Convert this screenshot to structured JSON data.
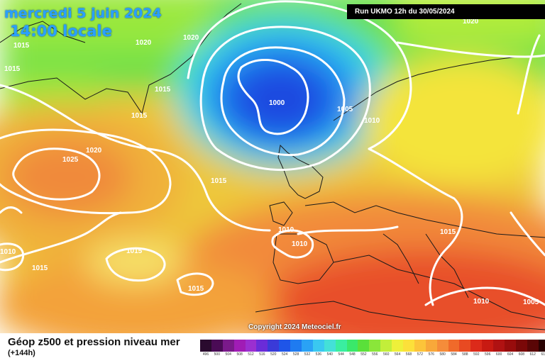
{
  "header": {
    "date": "mercredi 5 juin 2024",
    "time": "14:00 locale",
    "run": "Run UKMO 12h du 30/05/2024"
  },
  "footer": {
    "title": "Géop z500 et pression niveau mer",
    "subtitle": "(+144h)",
    "copyright": "Copyright 2024 Meteociel.fr"
  },
  "isobars": {
    "labels": [
      "1015",
      "1015",
      "1020",
      "1020",
      "1015",
      "1015",
      "1020",
      "1025",
      "1015",
      "1000",
      "1005",
      "1010",
      "1015",
      "1010",
      "1010",
      "1010",
      "1015",
      "1015",
      "1015",
      "1010",
      "1005",
      "1020"
    ]
  },
  "scale": {
    "values": [
      "496",
      "500",
      "504",
      "508",
      "512",
      "516",
      "520",
      "524",
      "528",
      "532",
      "536",
      "540",
      "544",
      "548",
      "552",
      "556",
      "560",
      "564",
      "568",
      "572",
      "576",
      "580",
      "584",
      "588",
      "592",
      "596",
      "600",
      "604",
      "608",
      "612",
      "616"
    ],
    "colors": [
      "#2a0a2e",
      "#4a0b55",
      "#7a1a8a",
      "#a01cb5",
      "#9b2fd0",
      "#6a2cd8",
      "#3a3ad8",
      "#1f55e8",
      "#1f7bf0",
      "#2aa2f5",
      "#3ac8f0",
      "#44e0d8",
      "#3aeea0",
      "#3ae86a",
      "#5ae03a",
      "#8ae63a",
      "#c2ee3a",
      "#eef03a",
      "#fce03a",
      "#fcc43a",
      "#f8a83a",
      "#f58c3a",
      "#f06a2a",
      "#e84a22",
      "#dc2a1a",
      "#c81a12",
      "#b01212",
      "#980c0c",
      "#7a0808",
      "#5a0606",
      "#2a0202"
    ]
  }
}
